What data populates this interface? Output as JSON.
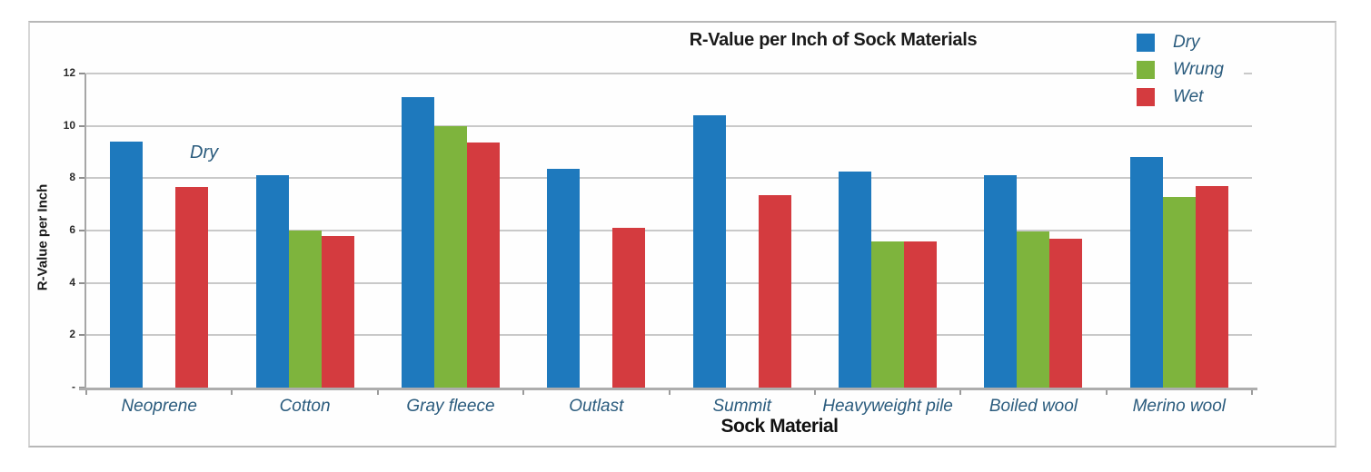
{
  "chart_data": {
    "type": "bar",
    "title": "R-Value per Inch of Sock Materials",
    "xlabel": "Sock Material",
    "ylabel": "R-Value per Inch",
    "ylim": [
      0,
      12
    ],
    "ytick_step": 2,
    "ytick_labels_top_to_bottom": [
      "12",
      "10",
      "8",
      "6",
      "4",
      "2",
      "-"
    ],
    "grid": true,
    "legend_position": "top-right",
    "annotation": {
      "text": "Dry",
      "near_category": "Neoprene"
    },
    "categories": [
      "Neoprene",
      "Cotton",
      "Gray fleece",
      "Outlast",
      "Summit",
      "Heavyweight pile",
      "Boiled wool",
      "Merino wool"
    ],
    "series": [
      {
        "name": "Dry",
        "color": "#1E79BD",
        "values": [
          9.4,
          8.1,
          11.1,
          8.35,
          10.4,
          8.25,
          8.1,
          8.8
        ]
      },
      {
        "name": "Wrung",
        "color": "#7EB43D",
        "values": [
          null,
          6.0,
          10.0,
          null,
          null,
          5.6,
          5.95,
          7.3
        ]
      },
      {
        "name": "Wet",
        "color": "#D43B3F",
        "values": [
          7.65,
          5.8,
          9.35,
          6.1,
          7.35,
          5.6,
          5.7,
          7.7
        ]
      }
    ],
    "colors": {
      "label_text": "#2a5b7d",
      "grid": "#c9c9c9",
      "axis": "#a6a6a6",
      "title_text": "#1a1a1a"
    }
  }
}
